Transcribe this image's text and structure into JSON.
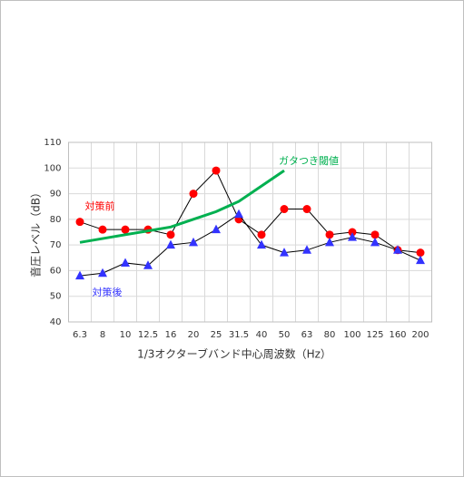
{
  "chart_data": {
    "type": "line",
    "xlabel": "1/3オクターブバンド中心周波数（Hz）",
    "ylabel": "音圧レベル（dB）",
    "categories": [
      "6.3",
      "8",
      "10",
      "12.5",
      "16",
      "20",
      "25",
      "31.5",
      "40",
      "50",
      "63",
      "80",
      "100",
      "125",
      "160",
      "200"
    ],
    "series": [
      {
        "name": "対策前",
        "color": "#ff0000",
        "values": [
          79,
          76,
          76,
          76,
          74,
          90,
          99,
          80,
          74,
          84,
          84,
          74,
          75,
          74,
          68,
          67
        ]
      },
      {
        "name": "対策後",
        "color": "#3333ff",
        "values": [
          58,
          59,
          63,
          62,
          70,
          71,
          76,
          82,
          70,
          67,
          68,
          71,
          73,
          71,
          68,
          64
        ]
      },
      {
        "name": "ガタつき閾値",
        "color": "#00b050",
        "values": [
          71,
          72.5,
          74,
          75.5,
          77,
          80,
          83,
          87,
          93,
          99,
          null,
          null,
          null,
          null,
          null,
          null
        ]
      }
    ],
    "ylim": [
      40,
      110
    ],
    "yticks": [
      40,
      50,
      60,
      70,
      80,
      90,
      100,
      110
    ],
    "grid": true
  }
}
